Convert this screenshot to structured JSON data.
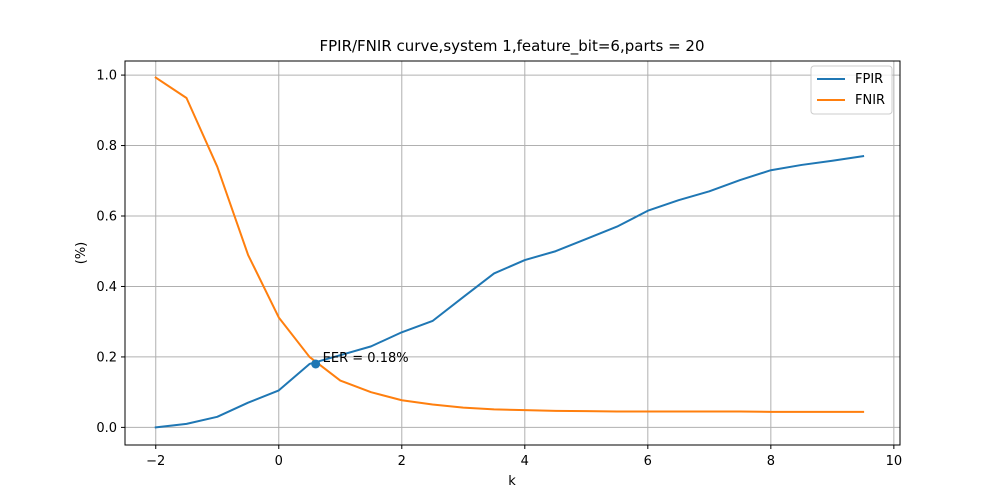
{
  "chart_data": {
    "type": "line",
    "title": "FPIR/FNIR curve,system 1,feature_bit=6,parts = 20",
    "xlabel": "k",
    "ylabel": "(%)",
    "xlim": [
      -2.5,
      10.1
    ],
    "ylim": [
      -0.05,
      1.04
    ],
    "xticks": [
      -2,
      0,
      2,
      4,
      6,
      8,
      10
    ],
    "xtick_labels": [
      "−2",
      "0",
      "2",
      "4",
      "6",
      "8",
      "10"
    ],
    "yticks": [
      0.0,
      0.2,
      0.4,
      0.6,
      0.8,
      1.0
    ],
    "ytick_labels": [
      "0.0",
      "0.2",
      "0.4",
      "0.6",
      "0.8",
      "1.0"
    ],
    "grid": true,
    "legend_position": "top-right",
    "x": [
      -2,
      -1.5,
      -1,
      -0.5,
      0,
      0.5,
      1,
      1.5,
      2,
      2.5,
      3,
      3.5,
      4,
      4.5,
      5,
      5.5,
      6,
      6.5,
      7,
      7.5,
      8,
      8.5,
      9,
      9.5
    ],
    "series": [
      {
        "name": "FPIR",
        "color": "#1f77b4",
        "values": [
          0.0,
          0.01,
          0.03,
          0.07,
          0.105,
          0.18,
          0.205,
          0.23,
          0.27,
          0.302,
          0.37,
          0.437,
          0.475,
          0.5,
          0.535,
          0.57,
          0.615,
          0.645,
          0.67,
          0.702,
          0.73,
          0.745,
          0.757,
          0.77
        ]
      },
      {
        "name": "FNIR",
        "color": "#ff7f0e",
        "values": [
          0.993,
          0.935,
          0.74,
          0.49,
          0.312,
          0.2,
          0.133,
          0.1,
          0.077,
          0.065,
          0.056,
          0.051,
          0.049,
          0.047,
          0.046,
          0.045,
          0.045,
          0.045,
          0.045,
          0.045,
          0.044,
          0.044,
          0.044,
          0.044
        ]
      }
    ],
    "annotations": [
      {
        "text": "EER = 0.18%",
        "x": 0.6,
        "y": 0.18,
        "marker": true,
        "color": "#1f77b4"
      }
    ]
  }
}
